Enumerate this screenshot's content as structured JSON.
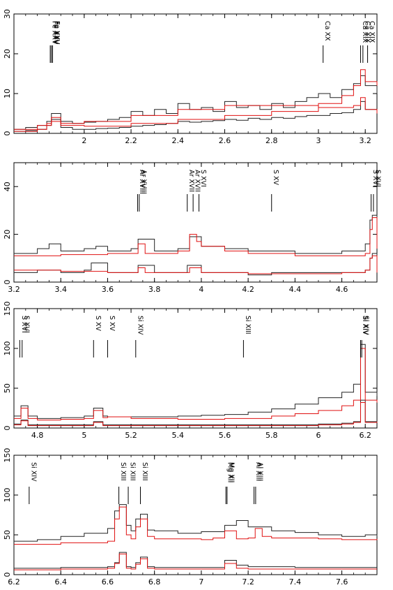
{
  "chart_data": [
    {
      "type": "line",
      "xlim": [
        1.7,
        3.25
      ],
      "ylim": [
        0,
        30
      ],
      "xticks": [
        "2",
        "2.2",
        "2.4",
        "2.6",
        "2.8",
        "3",
        "3.2"
      ],
      "yticks": [
        "0",
        "10",
        "20",
        "30"
      ],
      "line_labels": [
        {
          "x": 1.855,
          "text": "Fe XXV"
        },
        {
          "x": 1.86,
          "text": "Fe XXV"
        },
        {
          "x": 1.865,
          "text": "Fe XXV"
        },
        {
          "x": 3.02,
          "text": "Ca XX"
        },
        {
          "x": 3.18,
          "text": "Ca XIX"
        },
        {
          "x": 3.19,
          "text": "Ca XIX"
        },
        {
          "x": 3.21,
          "text": "Ca XIX"
        }
      ],
      "series": [
        {
          "color": "#222222",
          "x": [
            1.7,
            1.75,
            1.8,
            1.84,
            1.86,
            1.9,
            1.95,
            2.0,
            2.05,
            2.1,
            2.15,
            2.2,
            2.25,
            2.3,
            2.35,
            2.4,
            2.45,
            2.5,
            2.55,
            2.6,
            2.65,
            2.7,
            2.75,
            2.8,
            2.85,
            2.9,
            2.95,
            3.0,
            3.05,
            3.1,
            3.15,
            3.18,
            3.2,
            3.25
          ],
          "y": [
            1.0,
            1.5,
            2.0,
            3.0,
            5.0,
            3.0,
            2.5,
            2.8,
            3.0,
            3.5,
            4.0,
            5.5,
            4.5,
            6.0,
            5.0,
            7.5,
            6.0,
            6.5,
            5.5,
            8.0,
            6.5,
            7.0,
            6.0,
            7.5,
            6.5,
            8.0,
            9.0,
            10.0,
            9.0,
            11.0,
            12.5,
            14.5,
            12.0,
            10.0
          ]
        },
        {
          "color": "#222222",
          "x": [
            1.7,
            1.75,
            1.8,
            1.84,
            1.86,
            1.9,
            1.95,
            2.0,
            2.05,
            2.1,
            2.15,
            2.2,
            2.25,
            2.3,
            2.35,
            2.4,
            2.45,
            2.5,
            2.55,
            2.6,
            2.65,
            2.7,
            2.75,
            2.8,
            2.85,
            2.9,
            2.95,
            3.0,
            3.05,
            3.1,
            3.15,
            3.18,
            3.2,
            3.25
          ],
          "y": [
            0.5,
            0.7,
            1.0,
            2.0,
            3.5,
            1.5,
            1.0,
            1.0,
            1.2,
            1.3,
            1.5,
            1.8,
            2.0,
            2.2,
            2.5,
            3.0,
            2.8,
            3.0,
            3.2,
            3.5,
            3.3,
            3.8,
            3.5,
            4.0,
            3.8,
            4.2,
            4.5,
            4.5,
            5.0,
            5.2,
            6.0,
            8.0,
            6.0,
            5.0
          ]
        },
        {
          "color": "#e01010",
          "x": [
            1.7,
            1.8,
            1.84,
            1.86,
            1.9,
            2.0,
            2.2,
            2.4,
            2.6,
            2.8,
            3.0,
            3.1,
            3.15,
            3.18,
            3.2,
            3.25
          ],
          "y": [
            0.5,
            1.0,
            2.5,
            4.0,
            2.0,
            1.8,
            2.5,
            3.5,
            4.5,
            5.5,
            7.5,
            9.5,
            12.0,
            16.0,
            13.0,
            12.0
          ]
        },
        {
          "color": "#e01010",
          "x": [
            1.7,
            1.8,
            1.86,
            1.9,
            2.0,
            2.2,
            2.4,
            2.6,
            2.8,
            3.0,
            3.1,
            3.15,
            3.18,
            3.2,
            3.25
          ],
          "y": [
            1.0,
            2.0,
            3.0,
            2.5,
            3.0,
            4.5,
            6.0,
            7.0,
            7.0,
            6.5,
            6.5,
            7.0,
            9.0,
            6.0,
            5.0
          ]
        }
      ]
    },
    {
      "type": "line",
      "xlim": [
        3.2,
        4.75
      ],
      "ylim": [
        0,
        50
      ],
      "xticks": [
        "3.2",
        "3.4",
        "3.6",
        "3.8",
        "4",
        "4.2",
        "4.4",
        "4.6"
      ],
      "yticks": [
        "0",
        "20",
        "40"
      ],
      "line_labels": [
        {
          "x": 3.728,
          "text": "Ar XVIII"
        },
        {
          "x": 3.735,
          "text": "Ar XVIII"
        },
        {
          "x": 3.94,
          "text": "Ar XVII"
        },
        {
          "x": 3.965,
          "text": "Ar XVII"
        },
        {
          "x": 3.99,
          "text": "S XVI"
        },
        {
          "x": 4.3,
          "text": "S XV"
        },
        {
          "x": 4.725,
          "text": "S XVI"
        },
        {
          "x": 4.735,
          "text": "S XVI"
        }
      ],
      "series": [
        {
          "color": "#222222",
          "x": [
            3.2,
            3.3,
            3.35,
            3.4,
            3.5,
            3.55,
            3.6,
            3.7,
            3.73,
            3.8,
            3.9,
            3.95,
            4.0,
            4.1,
            4.2,
            4.3,
            4.4,
            4.5,
            4.6,
            4.7,
            4.72,
            4.73,
            4.75
          ],
          "y": [
            12,
            14,
            16,
            13,
            14,
            15,
            13,
            14,
            18,
            13,
            14,
            19,
            15,
            14,
            13,
            13,
            12,
            12,
            13,
            16,
            26,
            28,
            15
          ]
        },
        {
          "color": "#222222",
          "x": [
            3.2,
            3.3,
            3.4,
            3.5,
            3.53,
            3.6,
            3.7,
            3.73,
            3.8,
            3.9,
            3.94,
            4.0,
            4.1,
            4.2,
            4.3,
            4.4,
            4.5,
            4.6,
            4.7,
            4.72,
            4.73,
            4.75
          ],
          "y": [
            4,
            5,
            4,
            5,
            8,
            4,
            4,
            7,
            4,
            4,
            7,
            4,
            4,
            3,
            4,
            4,
            4,
            4,
            5,
            10,
            12,
            4
          ]
        },
        {
          "color": "#e01010",
          "x": [
            3.2,
            3.4,
            3.6,
            3.7,
            3.73,
            3.76,
            3.9,
            3.95,
            3.98,
            4.0,
            4.1,
            4.2,
            4.3,
            4.4,
            4.5,
            4.6,
            4.7,
            4.72,
            4.73,
            4.75
          ],
          "y": [
            11,
            11.5,
            12,
            12,
            16,
            12,
            13,
            20,
            17,
            15,
            13,
            12,
            12,
            11,
            11,
            11,
            12,
            22,
            27,
            14
          ]
        },
        {
          "color": "#e01010",
          "x": [
            3.2,
            3.4,
            3.6,
            3.7,
            3.73,
            3.76,
            3.9,
            3.95,
            4.0,
            4.2,
            4.4,
            4.6,
            4.7,
            4.72,
            4.73,
            4.75
          ],
          "y": [
            5,
            4.5,
            4,
            4,
            6,
            4,
            4,
            6,
            4,
            3.5,
            3.5,
            4,
            5,
            10,
            11,
            4
          ]
        }
      ]
    },
    {
      "type": "line",
      "xlim": [
        4.7,
        6.25
      ],
      "ylim": [
        0,
        150
      ],
      "xticks": [
        "4.8",
        "5",
        "5.2",
        "5.4",
        "5.6",
        "5.8",
        "6",
        "6.2"
      ],
      "yticks": [
        "0",
        "50",
        "100",
        "150"
      ],
      "line_labels": [
        {
          "x": 4.725,
          "text": "S XVI"
        },
        {
          "x": 4.735,
          "text": "S XVI"
        },
        {
          "x": 5.04,
          "text": "S XV"
        },
        {
          "x": 5.1,
          "text": "S XV"
        },
        {
          "x": 5.22,
          "text": "Si XIV"
        },
        {
          "x": 5.68,
          "text": "Si XIII"
        },
        {
          "x": 6.18,
          "text": "Si XIV"
        },
        {
          "x": 6.185,
          "text": "Si XIV"
        }
      ],
      "series": [
        {
          "color": "#222222",
          "x": [
            4.7,
            4.73,
            4.76,
            4.8,
            4.9,
            5.0,
            5.04,
            5.08,
            5.1,
            5.2,
            5.3,
            5.4,
            5.5,
            5.6,
            5.7,
            5.8,
            5.9,
            6.0,
            6.1,
            6.15,
            6.18,
            6.2,
            6.25
          ],
          "y": [
            15,
            28,
            15,
            12,
            13,
            15,
            25,
            15,
            14,
            14,
            14,
            15,
            16,
            17,
            20,
            24,
            30,
            38,
            45,
            55,
            105,
            45,
            40
          ]
        },
        {
          "color": "#222222",
          "x": [
            4.7,
            4.73,
            4.76,
            4.8,
            4.9,
            5.0,
            5.04,
            5.08,
            5.2,
            5.4,
            5.6,
            5.8,
            6.0,
            6.1,
            6.15,
            6.18,
            6.2,
            6.25
          ],
          "y": [
            5,
            10,
            4,
            4,
            4,
            4,
            8,
            4,
            4,
            4,
            4,
            4,
            5,
            6,
            8,
            35,
            8,
            9
          ]
        },
        {
          "color": "#e01010",
          "x": [
            4.7,
            4.73,
            4.76,
            4.8,
            4.9,
            5.0,
            5.04,
            5.08,
            5.1,
            5.2,
            5.4,
            5.6,
            5.8,
            5.9,
            6.0,
            6.1,
            6.15,
            6.18,
            6.2,
            6.25
          ],
          "y": [
            12,
            25,
            12,
            10,
            11,
            12,
            22,
            13,
            14,
            12,
            11,
            12,
            15,
            18,
            22,
            28,
            35,
            100,
            35,
            32
          ]
        },
        {
          "color": "#e01010",
          "x": [
            4.7,
            4.73,
            4.76,
            4.8,
            5.0,
            5.04,
            5.08,
            5.2,
            5.4,
            5.6,
            5.8,
            6.0,
            6.1,
            6.15,
            6.18,
            6.2,
            6.25
          ],
          "y": [
            4,
            9,
            3,
            3,
            3,
            7,
            3,
            3,
            3,
            3,
            3,
            4,
            5,
            7,
            32,
            7,
            8
          ]
        }
      ]
    },
    {
      "type": "line",
      "xlim": [
        6.2,
        7.75
      ],
      "ylim": [
        0,
        150
      ],
      "xticks": [
        "6.2",
        "6.4",
        "6.6",
        "6.8",
        "7",
        "7.2",
        "7.4",
        "7.6"
      ],
      "yticks": [
        "0",
        "50",
        "100",
        "150"
      ],
      "line_labels": [
        {
          "x": 6.265,
          "text": "Si XIV"
        },
        {
          "x": 6.648,
          "text": "Si XIII"
        },
        {
          "x": 6.688,
          "text": "Si XIII"
        },
        {
          "x": 6.74,
          "text": "Si XIII"
        },
        {
          "x": 7.105,
          "text": "Mg XII"
        },
        {
          "x": 7.11,
          "text": "Mg XII"
        },
        {
          "x": 7.225,
          "text": "Al XIII"
        },
        {
          "x": 7.232,
          "text": "Al XIII"
        }
      ],
      "series": [
        {
          "color": "#222222",
          "x": [
            6.2,
            6.3,
            6.4,
            6.5,
            6.6,
            6.63,
            6.65,
            6.68,
            6.7,
            6.72,
            6.74,
            6.77,
            6.8,
            6.9,
            7.0,
            7.1,
            7.15,
            7.2,
            7.3,
            7.4,
            7.5,
            7.6,
            7.7,
            7.75
          ],
          "y": [
            42,
            44,
            48,
            52,
            58,
            80,
            88,
            62,
            55,
            70,
            76,
            56,
            55,
            52,
            54,
            62,
            68,
            60,
            55,
            53,
            50,
            48,
            50,
            48
          ]
        },
        {
          "color": "#222222",
          "x": [
            6.2,
            6.4,
            6.6,
            6.63,
            6.65,
            6.68,
            6.7,
            6.72,
            6.74,
            6.77,
            6.8,
            7.0,
            7.1,
            7.15,
            7.2,
            7.4,
            7.6,
            7.75
          ],
          "y": [
            8,
            9,
            10,
            15,
            28,
            10,
            9,
            15,
            22,
            10,
            9,
            9,
            18,
            12,
            10,
            9,
            9,
            9
          ]
        },
        {
          "color": "#e01010",
          "x": [
            6.2,
            6.4,
            6.6,
            6.63,
            6.65,
            6.68,
            6.7,
            6.72,
            6.74,
            6.77,
            6.8,
            7.0,
            7.05,
            7.1,
            7.15,
            7.2,
            7.23,
            7.26,
            7.3,
            7.5,
            7.6,
            7.75
          ],
          "y": [
            38,
            40,
            42,
            70,
            85,
            50,
            45,
            60,
            70,
            48,
            45,
            44,
            46,
            55,
            45,
            46,
            58,
            48,
            46,
            45,
            44,
            45
          ]
        },
        {
          "color": "#e01010",
          "x": [
            6.2,
            6.4,
            6.6,
            6.63,
            6.65,
            6.68,
            6.7,
            6.72,
            6.74,
            6.77,
            6.8,
            7.0,
            7.1,
            7.15,
            7.2,
            7.4,
            7.6,
            7.75
          ],
          "y": [
            6,
            7,
            8,
            14,
            26,
            8,
            7,
            13,
            20,
            8,
            7,
            7,
            14,
            8,
            7,
            7,
            7,
            7
          ]
        }
      ]
    }
  ]
}
